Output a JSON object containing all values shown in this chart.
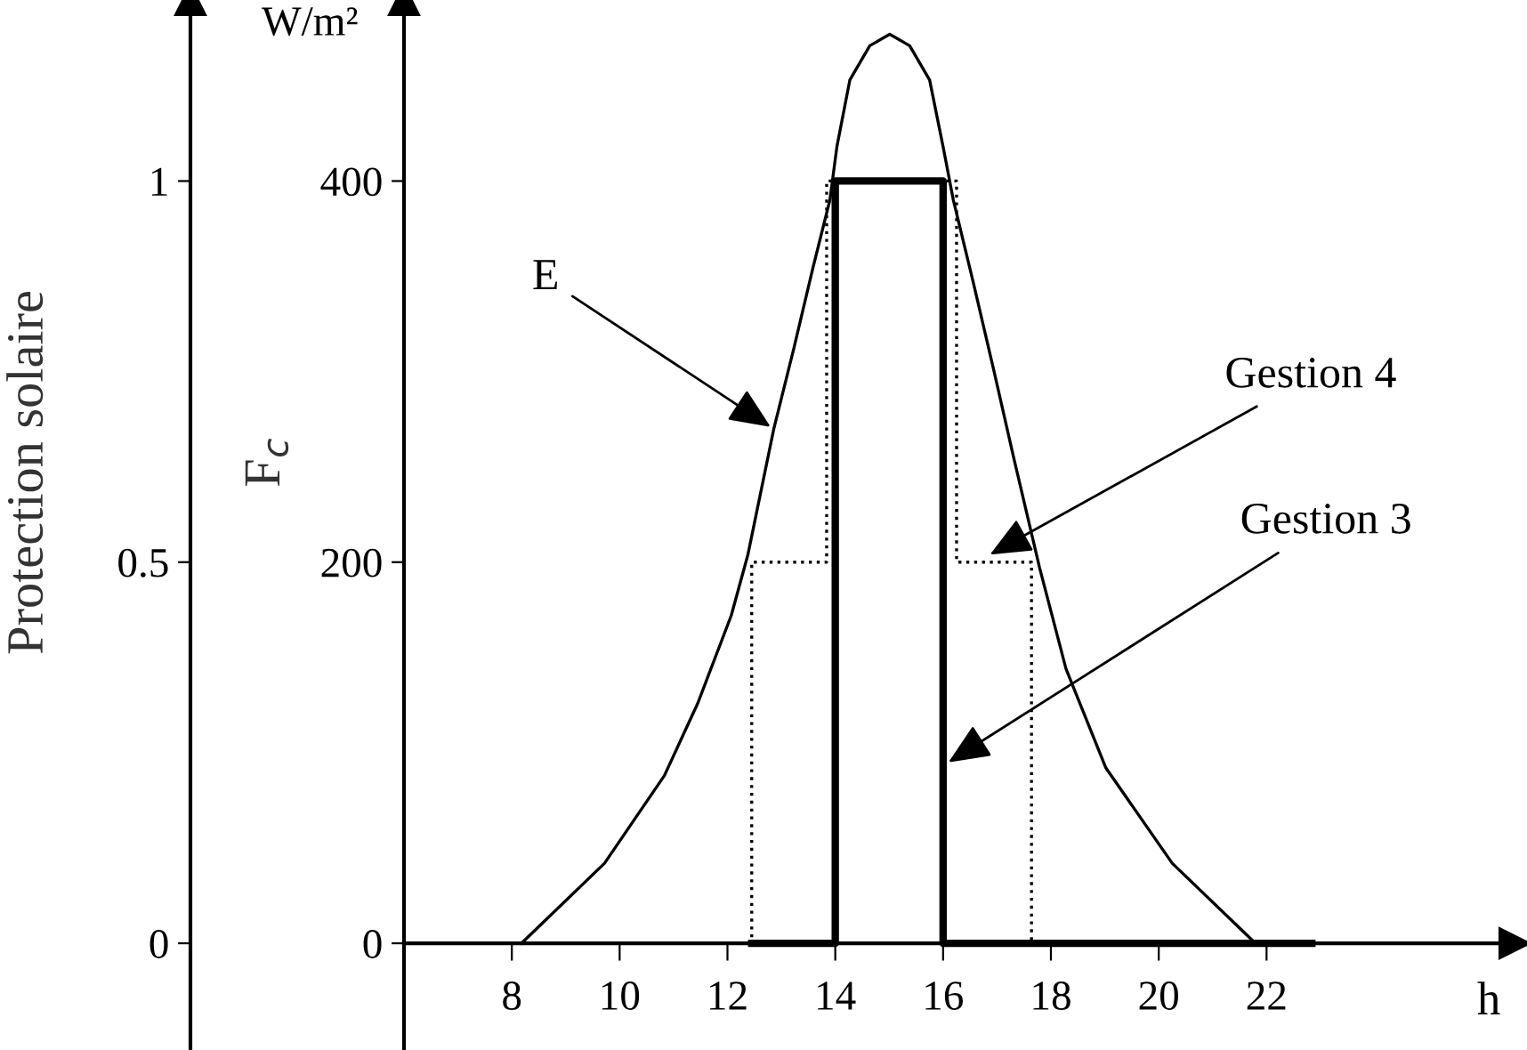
{
  "chart_data": {
    "type": "line",
    "xlabel": "h",
    "ylabel": "W/m²",
    "y2label": "Protection solaire",
    "xlim": [
      6,
      26.6
    ],
    "xticks": [
      8,
      10,
      12,
      14,
      16,
      18,
      20,
      22
    ],
    "ylim": [
      -56,
      495
    ],
    "yticks": [
      0,
      200,
      400
    ],
    "y2lim": [
      -0.14,
      1.2375
    ],
    "y2ticks": [
      0,
      0.5,
      1
    ],
    "grid": false,
    "legend": false,
    "marker": "none",
    "series": [
      {
        "color": "#000000",
        "line_style": "solid",
        "x": [
          8.18,
          9.72,
          10.83,
          11.45,
          12.07,
          12.38,
          12.86,
          13.23,
          13.59,
          13.9,
          14.03,
          14.27,
          14.64,
          15.01,
          15.38,
          15.75,
          16.0,
          16.19,
          16.55,
          16.93,
          17.3,
          17.79,
          18.28,
          19.02,
          20.25,
          21.72,
          21.8
        ],
        "values": [
          0,
          42,
          88,
          126,
          172,
          204,
          270,
          312,
          355,
          390,
          418,
          453,
          471,
          477,
          471,
          453,
          418,
          390,
          348,
          302,
          256,
          197,
          144,
          92,
          42,
          2,
          0
        ]
      },
      {
        "type": "step",
        "axis": "y2",
        "color": "#000000",
        "line_style": "dotted",
        "x": [
          6,
          12.45,
          13.84,
          16.25,
          17.64,
          22.84
        ],
        "values": [
          0,
          0.5,
          1,
          0.5,
          0,
          0
        ]
      },
      {
        "type": "step",
        "axis": "y2",
        "color": "#000000",
        "line_style": "solid",
        "x": [
          12.45,
          14,
          16,
          22.84
        ],
        "values": [
          0,
          1,
          0,
          0
        ]
      }
    ],
    "annotations": [
      {
        "text": "E",
        "x": 12.8,
        "y": 271
      },
      {
        "text": "Gestion 4",
        "x": 16.87,
        "y": 204
      },
      {
        "text": "Gestion 3",
        "x": 16.1,
        "y": 95
      },
      "F$_{c}$"
    ]
  }
}
